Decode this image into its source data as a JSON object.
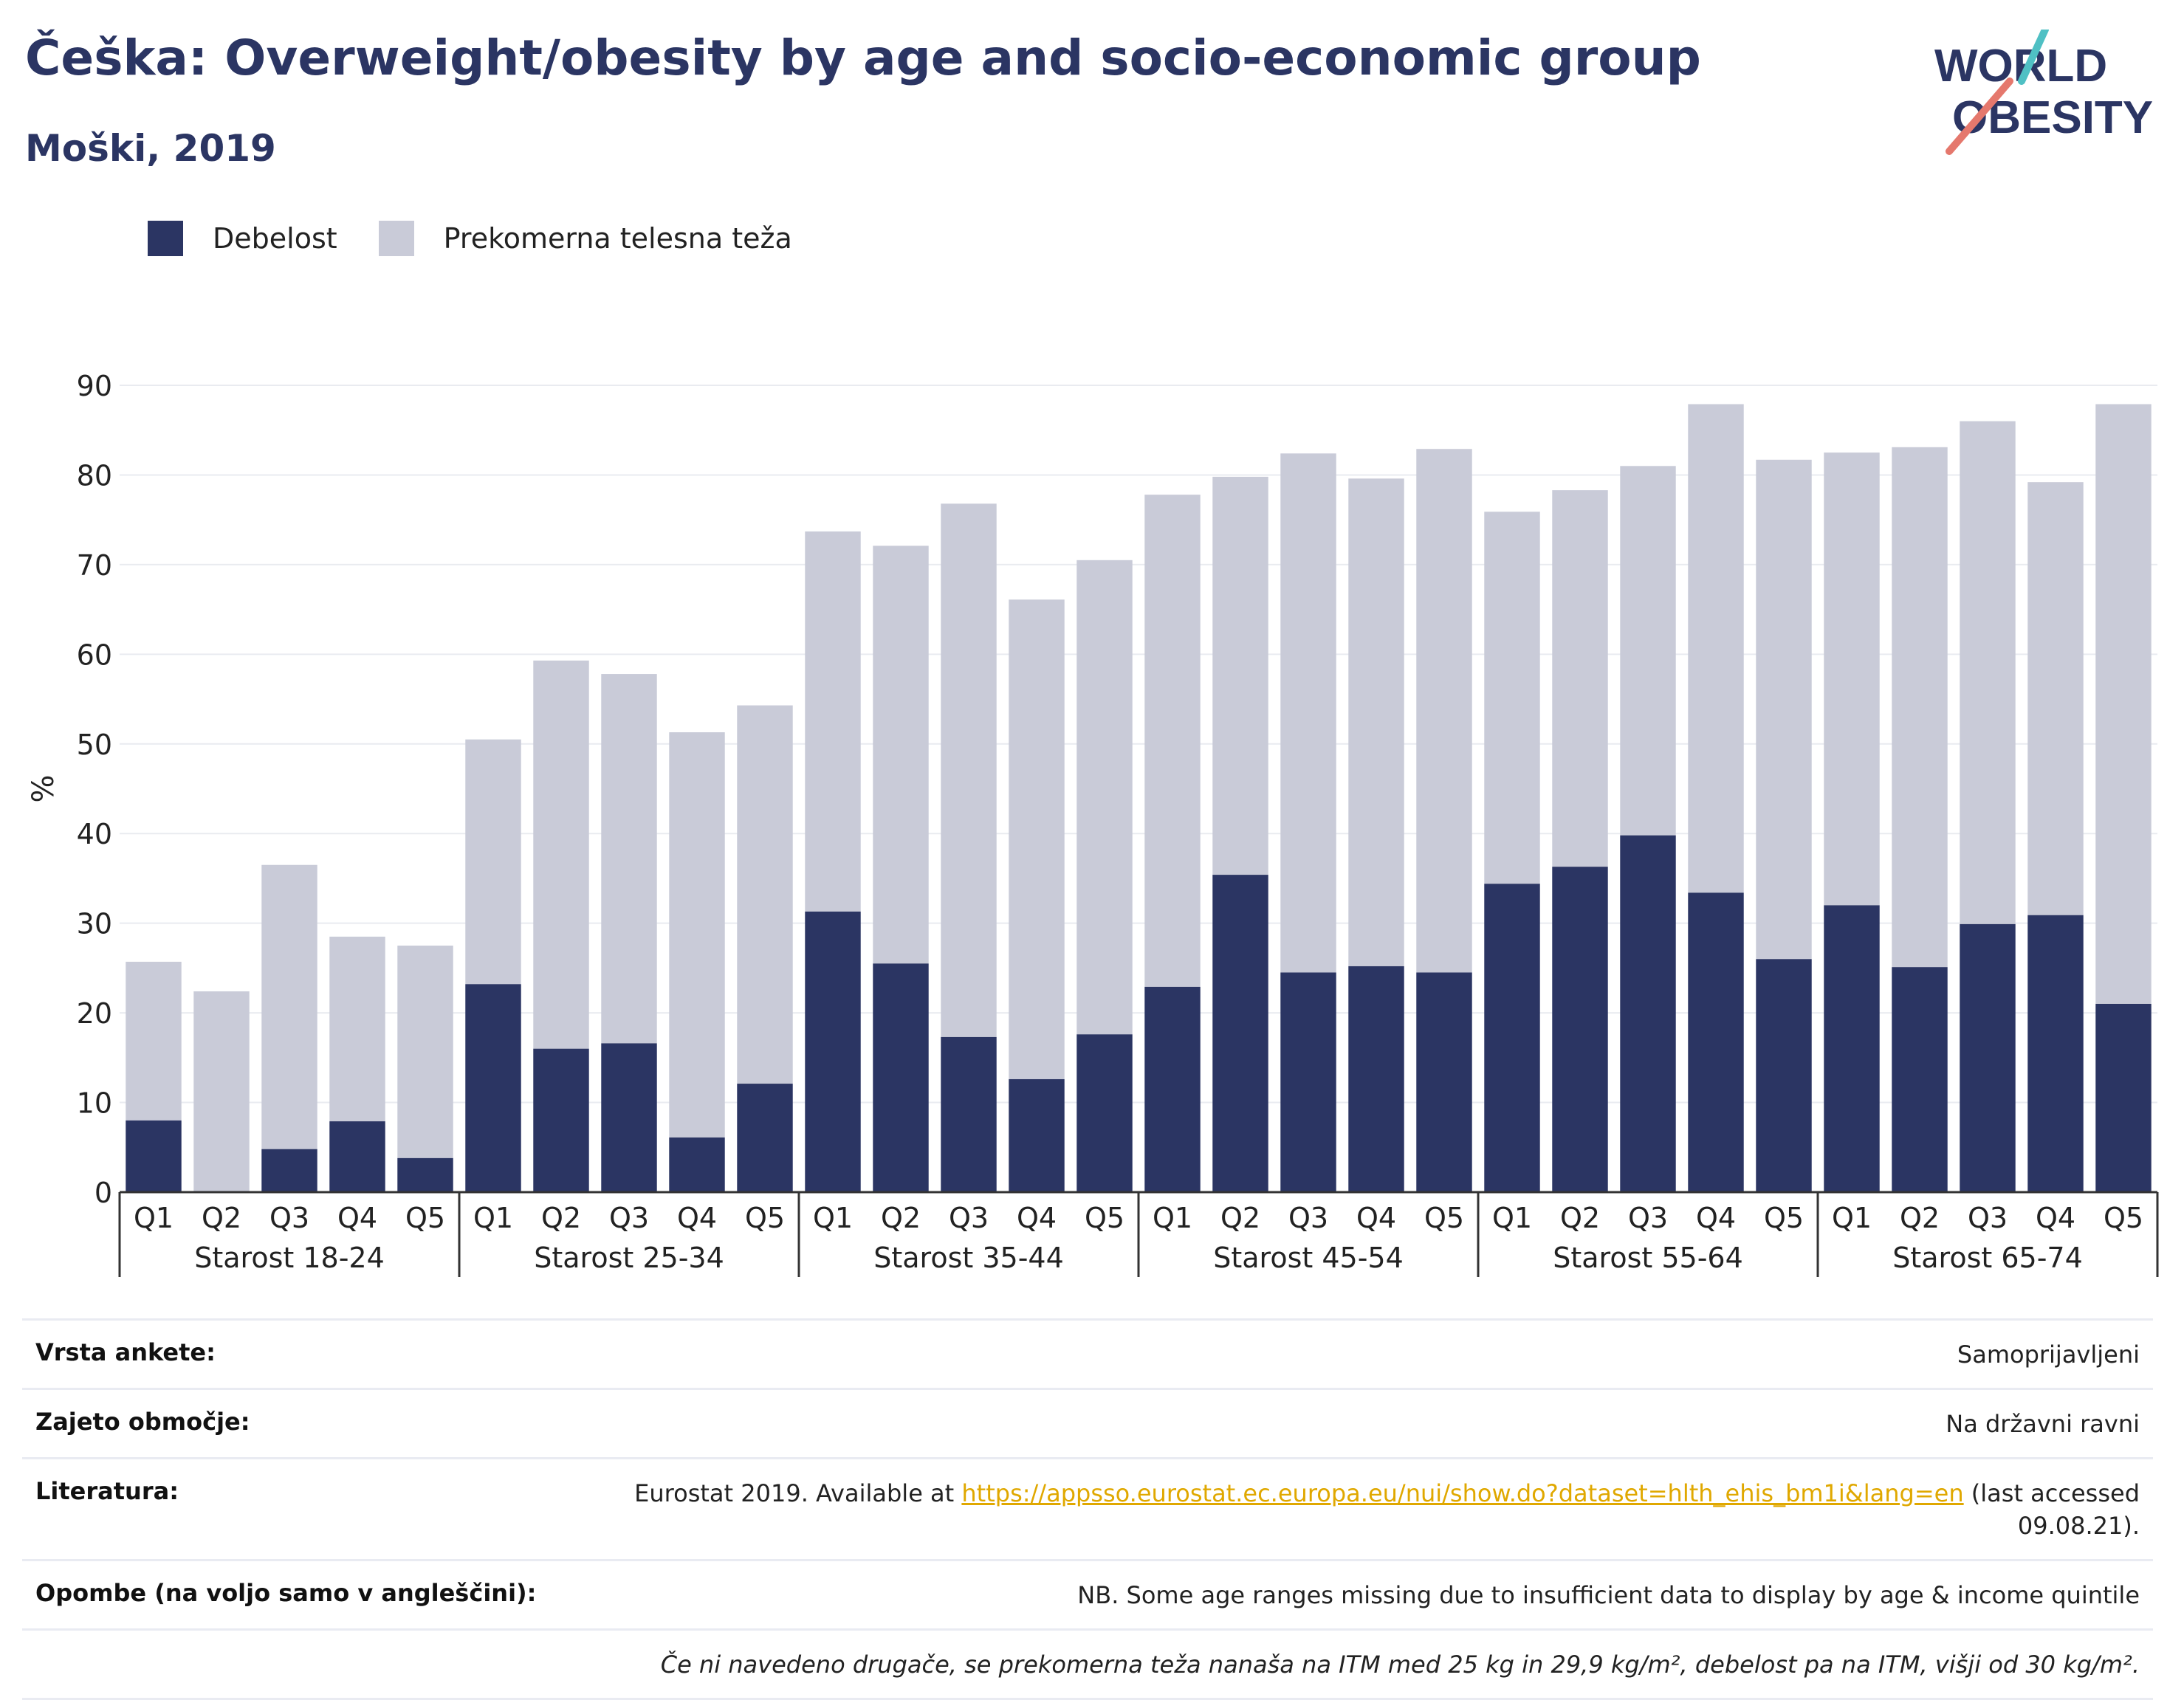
{
  "header": {
    "title": "Češka: Overweight/obesity by age and socio-economic group",
    "subtitle": "Moški, 2019",
    "logo_line1": "WORLD",
    "logo_line2": "OBESITY"
  },
  "legend": {
    "obesity_label": "Debelost",
    "overweight_label": "Prekomerna telesna teža"
  },
  "colors": {
    "obesity": "#2b3563",
    "overweight": "#c9cbd8",
    "title": "#2b3563",
    "logo_slash_red": "#e5786d",
    "logo_slash_teal": "#4fc0c4",
    "link": "#e0a800"
  },
  "chart_data": {
    "type": "bar",
    "stacked": true,
    "ylabel": "%",
    "ylim": [
      0,
      90
    ],
    "yticks": [
      0,
      10,
      20,
      30,
      40,
      50,
      60,
      70,
      80,
      90
    ],
    "grid": true,
    "legend_position": "top-left",
    "groups": [
      {
        "label": "Starost 18-24",
        "categories": [
          "Q1",
          "Q2",
          "Q3",
          "Q4",
          "Q5"
        ]
      },
      {
        "label": "Starost 25-34",
        "categories": [
          "Q1",
          "Q2",
          "Q3",
          "Q4",
          "Q5"
        ]
      },
      {
        "label": "Starost 35-44",
        "categories": [
          "Q1",
          "Q2",
          "Q3",
          "Q4",
          "Q5"
        ]
      },
      {
        "label": "Starost 45-54",
        "categories": [
          "Q1",
          "Q2",
          "Q3",
          "Q4",
          "Q5"
        ]
      },
      {
        "label": "Starost 55-64",
        "categories": [
          "Q1",
          "Q2",
          "Q3",
          "Q4",
          "Q5"
        ]
      },
      {
        "label": "Starost 65-74",
        "categories": [
          "Q1",
          "Q2",
          "Q3",
          "Q4",
          "Q5"
        ]
      }
    ],
    "series": [
      {
        "name": "Debelost",
        "values": [
          8.0,
          0.0,
          4.8,
          7.9,
          3.8,
          23.2,
          16.0,
          16.6,
          6.1,
          12.1,
          31.3,
          25.5,
          17.3,
          12.6,
          17.6,
          22.9,
          35.4,
          24.5,
          25.2,
          24.5,
          34.4,
          36.3,
          39.8,
          33.4,
          26.0,
          32.0,
          25.1,
          29.9,
          30.9,
          21.0
        ]
      },
      {
        "name": "Prekomerna telesna teža",
        "values": [
          17.7,
          22.4,
          31.7,
          20.6,
          23.7,
          27.3,
          43.3,
          41.2,
          45.2,
          42.2,
          42.4,
          46.6,
          59.5,
          53.5,
          52.9,
          54.9,
          44.4,
          57.9,
          54.4,
          58.4,
          41.5,
          42.0,
          41.2,
          54.5,
          55.7,
          50.5,
          58.0,
          56.1,
          48.3,
          66.9
        ]
      }
    ]
  },
  "info": {
    "rows": [
      {
        "label": "Vrsta ankete:",
        "value": "Samoprijavljeni"
      },
      {
        "label": "Zajeto območje:",
        "value": "Na državni ravni"
      },
      {
        "label": "Literatura:",
        "prefix": "Eurostat 2019. Available at ",
        "link": "https://appsso.eurostat.ec.europa.eu/nui/show.do?dataset=hlth_ehis_bm1i&lang=en",
        "suffix": " (last accessed 09.08.21)."
      },
      {
        "label": "Opombe (na voljo samo v angleščini):",
        "value": "NB. Some age ranges missing due to insufficient data to display by age & income quintile"
      },
      {
        "label": "",
        "value": "Če ni navedeno drugače, se prekomerna teža nanaša na ITM med 25 kg in 29,9 kg/m², debelost pa na ITM, višji od 30 kg/m²."
      }
    ]
  }
}
